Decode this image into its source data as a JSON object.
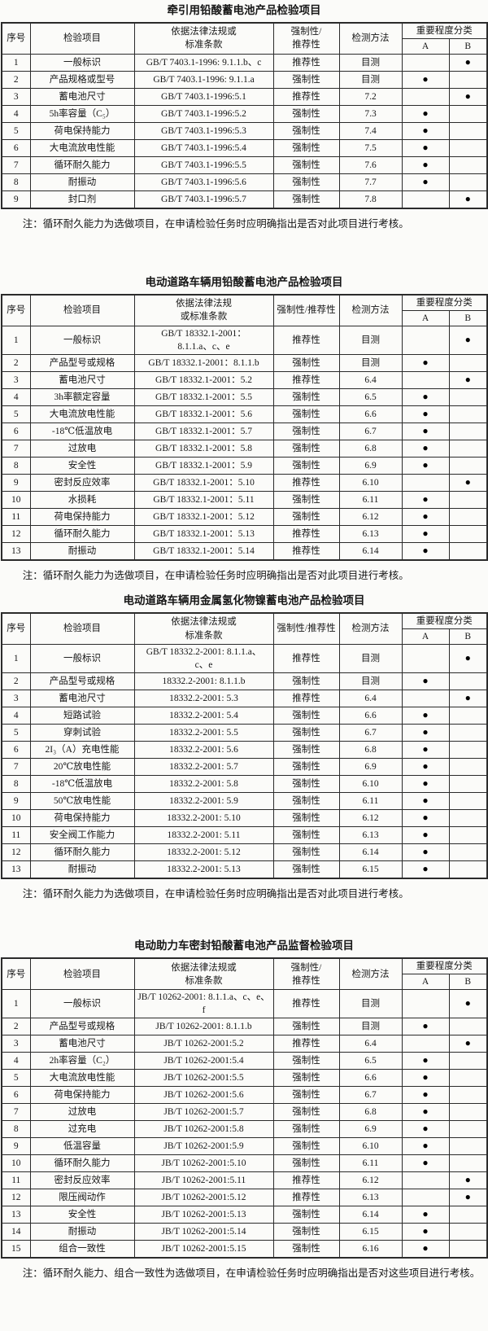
{
  "document": {
    "dot_glyph": "●"
  },
  "tables": [
    {
      "title": "牵引用铅酸蓄电池产品检验项目",
      "headers": {
        "no": "序号",
        "item": "检验项目",
        "basis": "依据法律法规或\n标准条款",
        "mandatory": "强制性/\n推荐性",
        "method": "检测方法",
        "importance": "重要程度分类",
        "a": "A",
        "b": "B"
      },
      "rows": [
        {
          "no": "1",
          "item": "一般标识",
          "basis": "GB/T 7403.1-1996: 9.1.1.b、c",
          "mandatory": "推荐性",
          "method": "目测",
          "importance": "B"
        },
        {
          "no": "2",
          "item": "产品规格或型号",
          "basis": "GB/T 7403.1-1996: 9.1.1.a",
          "mandatory": "强制性",
          "method": "目测",
          "importance": "A"
        },
        {
          "no": "3",
          "item": "蓄电池尺寸",
          "basis": "GB/T 7403.1-1996:5.1",
          "mandatory": "推荐性",
          "method": "7.2",
          "importance": "B"
        },
        {
          "no": "4",
          "item": "5h率容量（C₅）",
          "basis": "GB/T 7403.1-1996:5.2",
          "mandatory": "强制性",
          "method": "7.3",
          "importance": "A"
        },
        {
          "no": "5",
          "item": "荷电保持能力",
          "basis": "GB/T 7403.1-1996:5.3",
          "mandatory": "强制性",
          "method": "7.4",
          "importance": "A"
        },
        {
          "no": "6",
          "item": "大电流放电性能",
          "basis": "GB/T 7403.1-1996:5.4",
          "mandatory": "强制性",
          "method": "7.5",
          "importance": "A"
        },
        {
          "no": "7",
          "item": "循环耐久能力",
          "basis": "GB/T 7403.1-1996:5.5",
          "mandatory": "强制性",
          "method": "7.6",
          "importance": "A"
        },
        {
          "no": "8",
          "item": "耐振动",
          "basis": "GB/T 7403.1-1996:5.6",
          "mandatory": "强制性",
          "method": "7.7",
          "importance": "A"
        },
        {
          "no": "9",
          "item": "封口剂",
          "basis": "GB/T 7403.1-1996:5.7",
          "mandatory": "强制性",
          "method": "7.8",
          "importance": "B"
        }
      ],
      "note": "注：循环耐久能力为选做项目，在申请检验任务时应明确指出是否对此项目进行考核。"
    },
    {
      "title": "电动道路车辆用铅酸蓄电池产品检验项目",
      "headers": {
        "no": "序号",
        "item": "检验项目",
        "basis": "依据法律法规\n或标准条款",
        "mandatory": "强制性/推荐性",
        "method": "检测方法",
        "importance": "重要程度分类",
        "a": "A",
        "b": "B"
      },
      "rows": [
        {
          "no": "1",
          "item": "一般标识",
          "basis": "GB/T 18332.1-2001：\n8.1.1.a、c、e",
          "mandatory": "推荐性",
          "method": "目测",
          "importance": "B"
        },
        {
          "no": "2",
          "item": "产品型号或规格",
          "basis": "GB/T 18332.1-2001：8.1.1.b",
          "mandatory": "强制性",
          "method": "目测",
          "importance": "A"
        },
        {
          "no": "3",
          "item": "蓄电池尺寸",
          "basis": "GB/T 18332.1-2001：5.2",
          "mandatory": "推荐性",
          "method": "6.4",
          "importance": "B"
        },
        {
          "no": "4",
          "item": "3h率额定容量",
          "basis": "GB/T 18332.1-2001：5.5",
          "mandatory": "强制性",
          "method": "6.5",
          "importance": "A"
        },
        {
          "no": "5",
          "item": "大电流放电性能",
          "basis": "GB/T 18332.1-2001：5.6",
          "mandatory": "强制性",
          "method": "6.6",
          "importance": "A"
        },
        {
          "no": "6",
          "item": "-18℃低温放电",
          "basis": "GB/T 18332.1-2001：5.7",
          "mandatory": "强制性",
          "method": "6.7",
          "importance": "A"
        },
        {
          "no": "7",
          "item": "过放电",
          "basis": "GB/T 18332.1-2001：5.8",
          "mandatory": "强制性",
          "method": "6.8",
          "importance": "A"
        },
        {
          "no": "8",
          "item": "安全性",
          "basis": "GB/T 18332.1-2001：5.9",
          "mandatory": "强制性",
          "method": "6.9",
          "importance": "A"
        },
        {
          "no": "9",
          "item": "密封反应效率",
          "basis": "GB/T 18332.1-2001：5.10",
          "mandatory": "推荐性",
          "method": "6.10",
          "importance": "B"
        },
        {
          "no": "10",
          "item": "水损耗",
          "basis": "GB/T 18332.1-2001：5.11",
          "mandatory": "强制性",
          "method": "6.11",
          "importance": "A"
        },
        {
          "no": "11",
          "item": "荷电保持能力",
          "basis": "GB/T 18332.1-2001：5.12",
          "mandatory": "强制性",
          "method": "6.12",
          "importance": "A"
        },
        {
          "no": "12",
          "item": "循环耐久能力",
          "basis": "GB/T 18332.1-2001：5.13",
          "mandatory": "推荐性",
          "method": "6.13",
          "importance": "A"
        },
        {
          "no": "13",
          "item": "耐振动",
          "basis": "GB/T 18332.1-2001：5.14",
          "mandatory": "推荐性",
          "method": "6.14",
          "importance": "A"
        }
      ],
      "note": "注：循环耐久能力为选做项目，在申请检验任务时应明确指出是否对此项目进行考核。"
    },
    {
      "title": "电动道路车辆用金属氢化物镍蓄电池产品检验项目",
      "headers": {
        "no": "序号",
        "item": "检验项目",
        "basis": "依据法律法规或\n标准条款",
        "mandatory": "强制性/推荐性",
        "method": "检测方法",
        "importance": "重要程度分类",
        "a": "A",
        "b": "B"
      },
      "rows": [
        {
          "no": "1",
          "item": "一般标识",
          "basis": "GB/T 18332.2-2001: 8.1.1.a、\nc、e",
          "mandatory": "推荐性",
          "method": "目测",
          "importance": "B"
        },
        {
          "no": "2",
          "item": "产品型号或规格",
          "basis": "18332.2-2001: 8.1.1.b",
          "mandatory": "强制性",
          "method": "目测",
          "importance": "A"
        },
        {
          "no": "3",
          "item": "蓄电池尺寸",
          "basis": "18332.2-2001: 5.3",
          "mandatory": "推荐性",
          "method": "6.4",
          "importance": "B"
        },
        {
          "no": "4",
          "item": "短路试验",
          "basis": "18332.2-2001: 5.4",
          "mandatory": "强制性",
          "method": "6.6",
          "importance": "A"
        },
        {
          "no": "5",
          "item": "穿刺试验",
          "basis": "18332.2-2001: 5.5",
          "mandatory": "强制性",
          "method": "6.7",
          "importance": "A"
        },
        {
          "no": "6",
          "item": "2I₃（A）充电性能",
          "basis": "18332.2-2001: 5.6",
          "mandatory": "强制性",
          "method": "6.8",
          "importance": "A"
        },
        {
          "no": "7",
          "item": "20℃放电性能",
          "basis": "18332.2-2001: 5.7",
          "mandatory": "强制性",
          "method": "6.9",
          "importance": "A"
        },
        {
          "no": "8",
          "item": "-18℃低温放电",
          "basis": "18332.2-2001: 5.8",
          "mandatory": "强制性",
          "method": "6.10",
          "importance": "A"
        },
        {
          "no": "9",
          "item": "50℃放电性能",
          "basis": "18332.2-2001: 5.9",
          "mandatory": "强制性",
          "method": "6.11",
          "importance": "A"
        },
        {
          "no": "10",
          "item": "荷电保持能力",
          "basis": "18332.2-2001: 5.10",
          "mandatory": "强制性",
          "method": "6.12",
          "importance": "A"
        },
        {
          "no": "11",
          "item": "安全阀工作能力",
          "basis": "18332.2-2001: 5.11",
          "mandatory": "强制性",
          "method": "6.13",
          "importance": "A"
        },
        {
          "no": "12",
          "item": "循环耐久能力",
          "basis": "18332.2-2001: 5.12",
          "mandatory": "强制性",
          "method": "6.14",
          "importance": "A"
        },
        {
          "no": "13",
          "item": "耐振动",
          "basis": "18332.2-2001: 5.13",
          "mandatory": "强制性",
          "method": "6.15",
          "importance": "A"
        }
      ],
      "note": "注：循环耐久能力为选做项目，在申请检验任务时应明确指出是否对此项目进行考核。"
    },
    {
      "title": "电动助力车密封铅酸蓄电池产品监督检验项目",
      "headers": {
        "no": "序号",
        "item": "检验项目",
        "basis": "依据法律法规或\n标准条款",
        "mandatory": "强制性/\n推荐性",
        "method": "检测方法",
        "importance": "重要程度分类",
        "a": "A",
        "b": "B"
      },
      "rows": [
        {
          "no": "1",
          "item": "一般标识",
          "basis": "JB/T 10262-2001: 8.1.1.a、c、e、\nf",
          "mandatory": "推荐性",
          "method": "目测",
          "importance": "B"
        },
        {
          "no": "2",
          "item": "产品型号或规格",
          "basis": "JB/T 10262-2001: 8.1.1.b",
          "mandatory": "强制性",
          "method": "目测",
          "importance": "A"
        },
        {
          "no": "3",
          "item": "蓄电池尺寸",
          "basis": "JB/T 10262-2001:5.2",
          "mandatory": "推荐性",
          "method": "6.4",
          "importance": "B"
        },
        {
          "no": "4",
          "item": "2h率容量（C₂）",
          "basis": "JB/T 10262-2001:5.4",
          "mandatory": "强制性",
          "method": "6.5",
          "importance": "A"
        },
        {
          "no": "5",
          "item": "大电流放电性能",
          "basis": "JB/T 10262-2001:5.5",
          "mandatory": "强制性",
          "method": "6.6",
          "importance": "A"
        },
        {
          "no": "6",
          "item": "荷电保持能力",
          "basis": "JB/T 10262-2001:5.6",
          "mandatory": "强制性",
          "method": "6.7",
          "importance": "A"
        },
        {
          "no": "7",
          "item": "过放电",
          "basis": "JB/T 10262-2001:5.7",
          "mandatory": "强制性",
          "method": "6.8",
          "importance": "A"
        },
        {
          "no": "8",
          "item": "过充电",
          "basis": "JB/T 10262-2001:5.8",
          "mandatory": "强制性",
          "method": "6.9",
          "importance": "A"
        },
        {
          "no": "9",
          "item": "低温容量",
          "basis": "JB/T 10262-2001:5.9",
          "mandatory": "强制性",
          "method": "6.10",
          "importance": "A"
        },
        {
          "no": "10",
          "item": "循环耐久能力",
          "basis": "JB/T 10262-2001:5.10",
          "mandatory": "强制性",
          "method": "6.11",
          "importance": "A"
        },
        {
          "no": "11",
          "item": "密封反应效率",
          "basis": "JB/T 10262-2001:5.11",
          "mandatory": "推荐性",
          "method": "6.12",
          "importance": "B"
        },
        {
          "no": "12",
          "item": "限压阀动作",
          "basis": "JB/T 10262-2001:5.12",
          "mandatory": "推荐性",
          "method": "6.13",
          "importance": "B"
        },
        {
          "no": "13",
          "item": "安全性",
          "basis": "JB/T 10262-2001:5.13",
          "mandatory": "强制性",
          "method": "6.14",
          "importance": "A"
        },
        {
          "no": "14",
          "item": "耐振动",
          "basis": "JB/T 10262-2001:5.14",
          "mandatory": "强制性",
          "method": "6.15",
          "importance": "A"
        },
        {
          "no": "15",
          "item": "组合一致性",
          "basis": "JB/T 10262-2001:5.15",
          "mandatory": "强制性",
          "method": "6.16",
          "importance": "A"
        }
      ],
      "note": "注：循环耐久能力、组合一致性为选做项目，在申请检验任务时应明确指出是否对这些项目进行考核。"
    }
  ]
}
